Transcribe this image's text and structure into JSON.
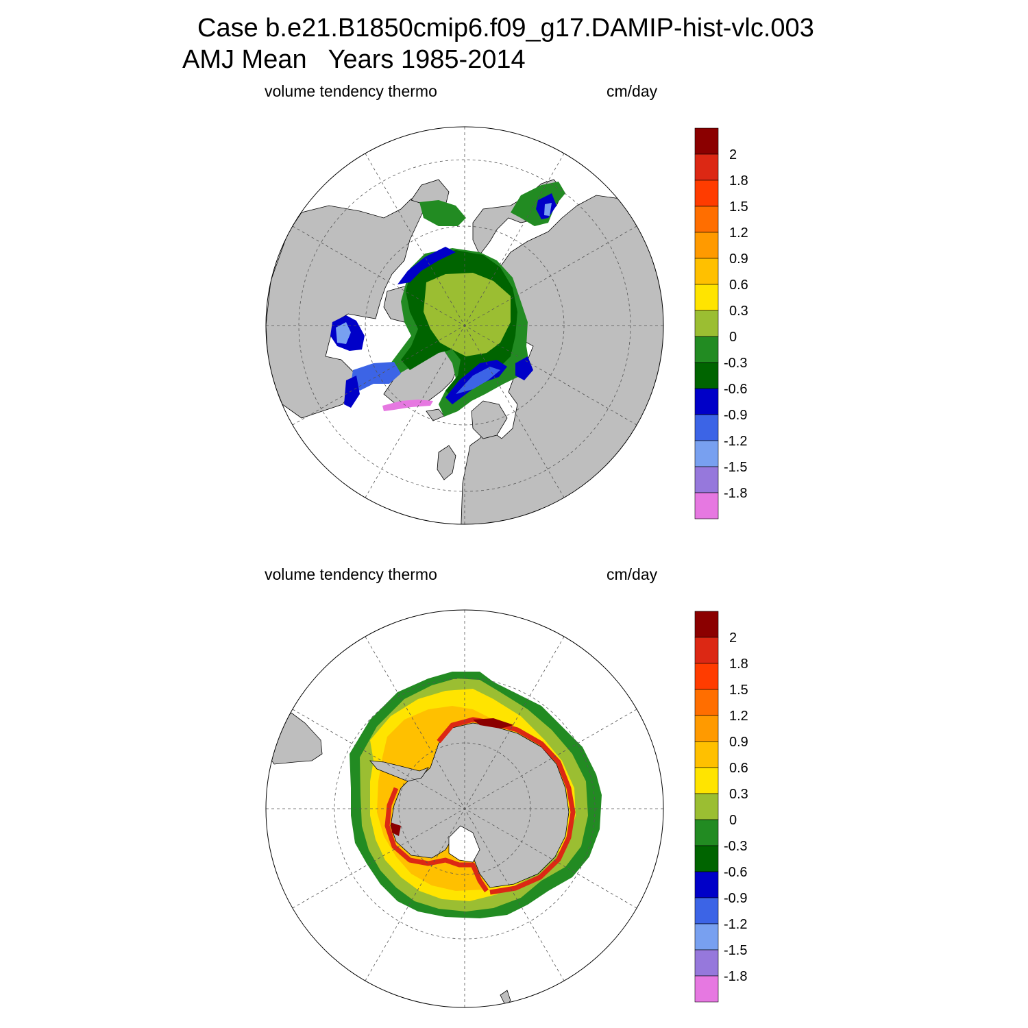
{
  "title": {
    "case": "Case b.e21.B1850cmip6.f09_g17.DAMIP-hist-vlc.003",
    "season": "AMJ Mean",
    "years": "Years 1985-2014"
  },
  "panels": [
    {
      "hemisphere": "north",
      "left_label": "volume tendency thermo",
      "right_label": "cm/day"
    },
    {
      "hemisphere": "south",
      "left_label": "volume tendency thermo",
      "right_label": "cm/day"
    }
  ],
  "colorbar": {
    "labels": [
      "2",
      "1.8",
      "1.5",
      "1.2",
      "0.9",
      "0.6",
      "0.3",
      "0",
      "-0.3",
      "-0.6",
      "-0.9",
      "-1.2",
      "-1.5",
      "-1.8"
    ],
    "colors": [
      "#8b0000",
      "#dc2814",
      "#ff3c00",
      "#ff6e00",
      "#ff9a00",
      "#ffc000",
      "#ffe400",
      "#9bbe32",
      "#228b22",
      "#006400",
      "#0000c8",
      "#3c64e6",
      "#78a0f0",
      "#9678dc",
      "#e678e1"
    ]
  },
  "map_colors": {
    "land": "#bebebe",
    "ocean": "#ffffff"
  }
}
